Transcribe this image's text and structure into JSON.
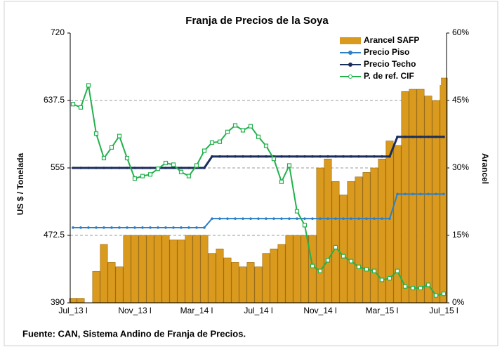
{
  "chart_data": {
    "type": "bar-line",
    "title": "Franja de Precios de la Soya",
    "y_label": "US $ / Tonelada",
    "y2_label": "Arancel",
    "source": "Fuente: CAN, Sistema Andino de Franja de Precios.",
    "categories": [
      "Jul_13 l",
      null,
      null,
      null,
      null,
      null,
      null,
      null,
      "Nov_13 l",
      null,
      null,
      null,
      null,
      null,
      null,
      null,
      "Mar_14 l",
      null,
      null,
      null,
      null,
      null,
      null,
      null,
      "Jul_14 l",
      null,
      null,
      null,
      null,
      null,
      null,
      null,
      "Nov_14 l",
      null,
      null,
      null,
      null,
      null,
      null,
      null,
      "Mar_15 l",
      null,
      null,
      null,
      null,
      null,
      null,
      null,
      "Jul_15 l"
    ],
    "ylim": [
      390,
      720
    ],
    "yticks": [
      390,
      {
        "value": 472.5,
        "label": "472.5"
      },
      555,
      {
        "value": 637.5,
        "label": "637.5"
      },
      720
    ],
    "y2lim": [
      0,
      60
    ],
    "y2ticks": [
      {
        "value": 0,
        "label": "0%"
      },
      {
        "value": 15,
        "label": "15%"
      },
      {
        "value": 30,
        "label": "30%"
      },
      {
        "value": 45,
        "label": "45%"
      },
      {
        "value": 60,
        "label": "60%"
      }
    ],
    "grid": true,
    "legend": "top-right",
    "series": [
      {
        "name": "Arancel SAFP",
        "type": "bar",
        "axis": "y2",
        "color": "#d99a1e",
        "values": [
          1,
          1,
          0,
          7,
          13,
          9,
          8,
          15,
          15,
          15,
          15,
          15,
          15,
          14,
          14,
          15,
          15,
          15,
          11,
          12,
          10,
          9,
          8,
          9,
          8,
          11,
          12,
          13,
          15,
          15,
          15,
          15,
          30,
          32,
          27,
          24,
          27,
          28,
          29,
          30,
          32,
          36,
          35,
          47,
          47.5,
          47.5,
          46,
          45,
          50
        ]
      },
      {
        "name": "Precio Piso",
        "type": "line",
        "color": "#2e7fc7",
        "values": [
          482,
          482,
          482,
          482,
          482,
          482,
          482,
          482,
          482,
          482,
          482,
          482,
          482,
          482,
          482,
          482,
          482,
          482,
          493,
          493,
          493,
          493,
          493,
          493,
          493,
          493,
          493,
          493,
          493,
          493,
          493,
          493,
          493,
          493,
          493,
          493,
          493,
          493,
          493,
          493,
          493,
          493,
          523,
          523,
          523,
          523,
          523,
          523,
          523
        ]
      },
      {
        "name": "Precio Techo",
        "type": "line",
        "color": "#1a2d5c",
        "values": [
          555,
          555,
          555,
          555,
          555,
          555,
          555,
          555,
          555,
          555,
          555,
          555,
          555,
          555,
          555,
          555,
          555,
          555,
          569,
          569,
          569,
          569,
          569,
          569,
          569,
          569,
          569,
          569,
          569,
          569,
          569,
          569,
          569,
          569,
          569,
          569,
          569,
          569,
          569,
          569,
          569,
          569,
          593,
          593,
          593,
          593,
          593,
          593,
          593
        ]
      },
      {
        "name": "P. de ref. CIF",
        "type": "line",
        "color": "#22b14c",
        "values": [
          633,
          629,
          656,
          597,
          567,
          580,
          594,
          567,
          542,
          545,
          547,
          554,
          561,
          559,
          550,
          545,
          558,
          576,
          586,
          587,
          599,
          607,
          601,
          606,
          593,
          582,
          566,
          538,
          558,
          502,
          485,
          435,
          429,
          442,
          458,
          447,
          441,
          434,
          431,
          429,
          418,
          420,
          429,
          410,
          408,
          408,
          412,
          399,
          401
        ]
      }
    ]
  }
}
